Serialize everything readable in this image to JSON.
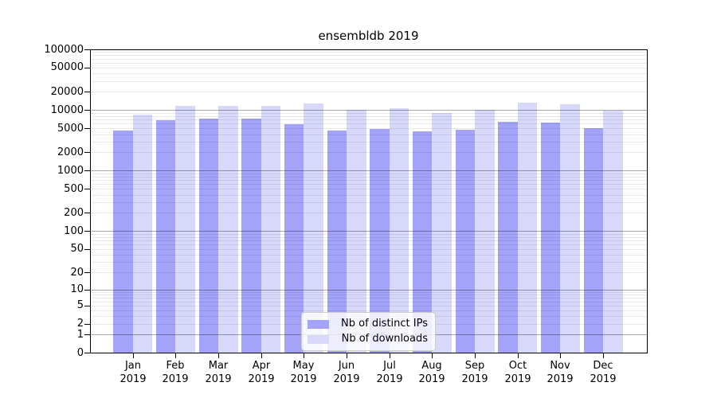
{
  "title": "ensembldb 2019",
  "chart_data": {
    "type": "bar",
    "title": "ensembldb 2019",
    "categories": [
      "Jan 2019",
      "Feb 2019",
      "Mar 2019",
      "Apr 2019",
      "May 2019",
      "Jun 2019",
      "Jul 2019",
      "Aug 2019",
      "Sep 2019",
      "Oct 2019",
      "Nov 2019",
      "Dec 2019"
    ],
    "series": [
      {
        "name": "Nb of distinct IPs",
        "color": "#a3a3fa",
        "values": [
          4600,
          6800,
          7150,
          7150,
          5850,
          4600,
          4900,
          4500,
          4700,
          6500,
          6200,
          5050
        ]
      },
      {
        "name": "Nb of downloads",
        "color": "#d8d8fa",
        "values": [
          8400,
          11600,
          11800,
          11800,
          12800,
          10000,
          10800,
          9000,
          10000,
          13200,
          12400,
          9700
        ]
      }
    ],
    "y_scale": "log1p",
    "ylim": [
      0,
      100000
    ],
    "y_ticks": [
      0,
      1,
      2,
      5,
      10,
      20,
      50,
      100,
      200,
      500,
      1000,
      2000,
      5000,
      10000,
      20000,
      50000,
      100000
    ],
    "grid": "horizontal log minor+major lines drawn above bars",
    "legend_position": "lower center",
    "xlabel": "",
    "ylabel": ""
  },
  "colors": {
    "major_grid": "rgba(0,0,0,0.34)",
    "minor_grid": "rgba(0,0,0,0.085)",
    "axis": "#000000"
  }
}
